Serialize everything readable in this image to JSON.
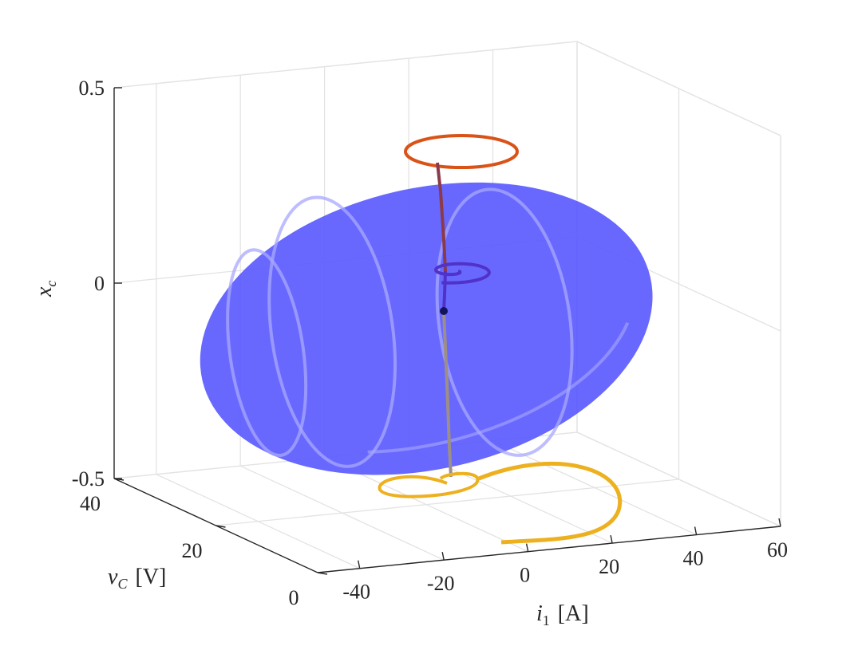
{
  "chart_data": {
    "type": "3d-line-surface",
    "title": "",
    "axes": {
      "x": {
        "label_var": "i",
        "label_sub": "1",
        "label_unit": "[A]",
        "range": [
          -50,
          60
        ],
        "ticks": [
          -40,
          -20,
          0,
          20,
          40,
          60
        ],
        "tick_labels": [
          "-40",
          "-20",
          "0",
          "20",
          "40",
          "60"
        ]
      },
      "y": {
        "label_var": "v",
        "label_sub": "C",
        "label_unit": "[V]",
        "range": [
          0,
          40
        ],
        "ticks": [
          0,
          20,
          40
        ],
        "tick_labels": [
          "0",
          "20",
          "40"
        ]
      },
      "z": {
        "label_var": "x",
        "label_sub": "c",
        "label_unit": "",
        "range": [
          -0.5,
          0.5
        ],
        "ticks": [
          -0.5,
          0,
          0.5
        ],
        "tick_labels": [
          "-0.5",
          "0",
          "0.5"
        ]
      }
    },
    "grid": true,
    "surface": {
      "type": "ellipsoid",
      "center": [
        0,
        20,
        -0.05
      ],
      "radii": [
        45,
        22,
        0.32
      ],
      "color": "#5b5bff",
      "opacity": 0.92,
      "meridian_color": "#a8a8ff"
    },
    "trajectory": {
      "equilibrium": [
        0,
        20,
        -0.05
      ],
      "equilibrium_color": "#13135c",
      "segments": [
        {
          "name_key": "upper",
          "color": "#d95319",
          "note_color": "#8b3a4a"
        },
        {
          "name_key": "middle",
          "color": "#5032c8"
        },
        {
          "name_key": "lower",
          "color": "#edb120",
          "note_color": "#9e8f86"
        }
      ]
    }
  }
}
